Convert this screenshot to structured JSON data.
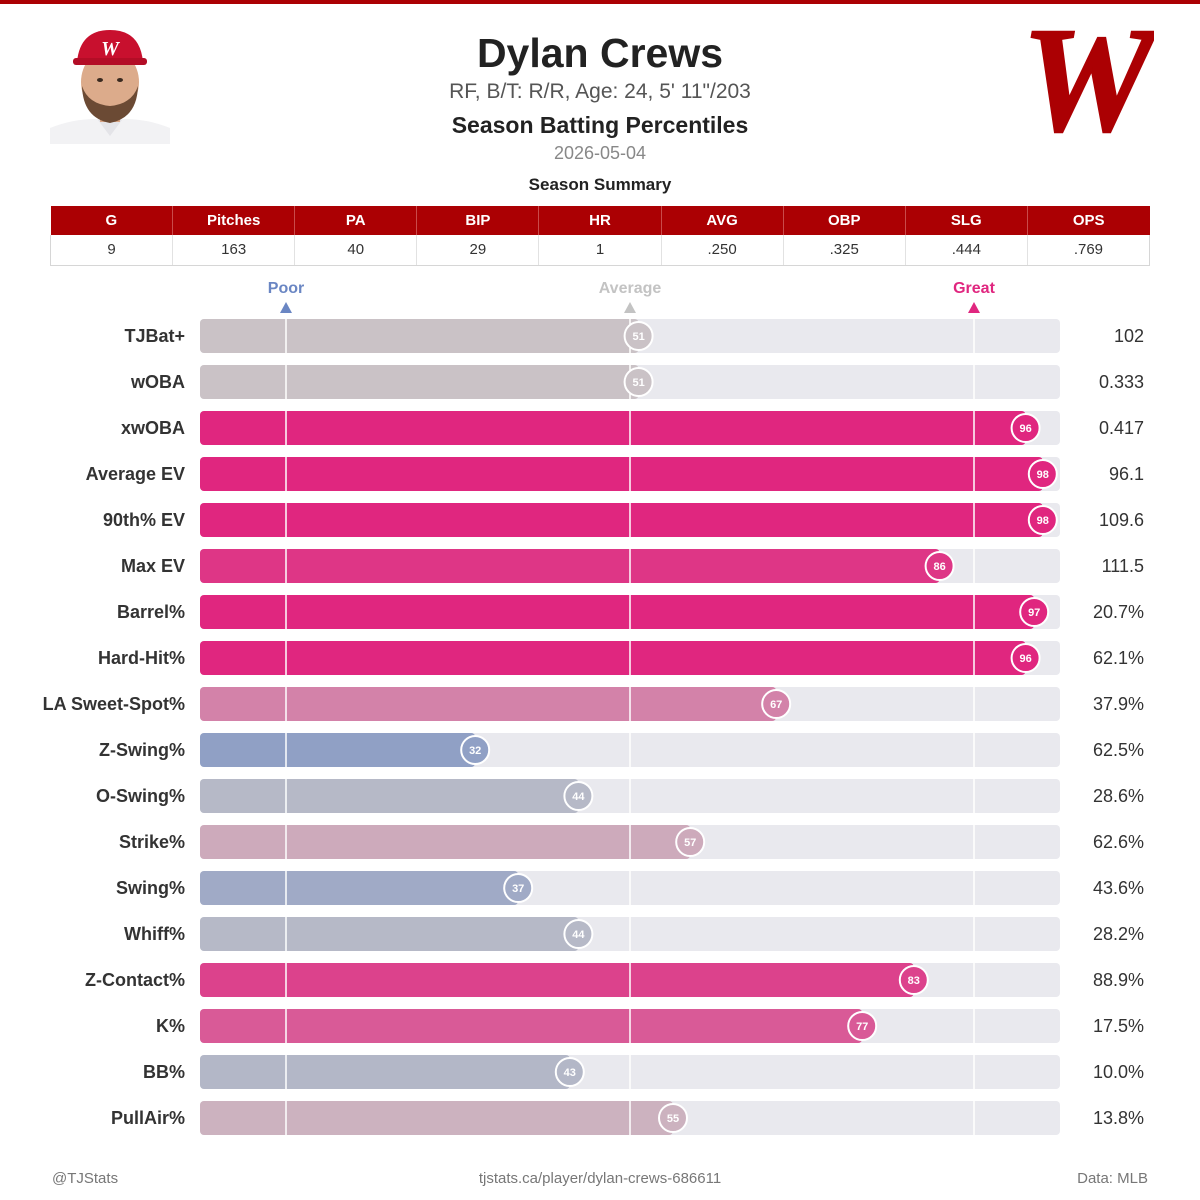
{
  "header": {
    "name": "Dylan Crews",
    "bio": "RF, B/T: R/R, Age: 24, 5' 11\"/203",
    "title": "Season Batting Percentiles",
    "date": "2026-05-04",
    "logo_letter": "W"
  },
  "summary": {
    "caption": "Season Summary",
    "columns": [
      "G",
      "Pitches",
      "PA",
      "BIP",
      "HR",
      "AVG",
      "OBP",
      "SLG",
      "OPS"
    ],
    "values": [
      "9",
      "163",
      "40",
      "29",
      "1",
      ".250",
      ".325",
      ".444",
      ".769"
    ]
  },
  "colors": {
    "brand_red": "#ab0003",
    "great": "#e0267f",
    "poor": "#6a86c3",
    "average": "#c9c6c8",
    "track": "#e9e9ee"
  },
  "chart_data": {
    "type": "bar",
    "orientation": "horizontal",
    "xlim": [
      0,
      100
    ],
    "markers": [
      {
        "label": "Poor",
        "value": 10
      },
      {
        "label": "Average",
        "value": 50
      },
      {
        "label": "Great",
        "value": 90
      }
    ],
    "categories": [
      "TJBat+",
      "wOBA",
      "xwOBA",
      "Average EV",
      "90th% EV",
      "Max EV",
      "Barrel%",
      "Hard-Hit%",
      "LA Sweet-Spot%",
      "Z-Swing%",
      "O-Swing%",
      "Strike%",
      "Swing%",
      "Whiff%",
      "Z-Contact%",
      "K%",
      "BB%",
      "PullAir%"
    ],
    "percentiles": [
      51,
      51,
      96,
      98,
      98,
      86,
      97,
      96,
      67,
      32,
      44,
      57,
      37,
      44,
      83,
      77,
      43,
      55
    ],
    "stat_values": [
      "102",
      "0.333",
      "0.417",
      "96.1",
      "109.6",
      "111.5",
      "20.7%",
      "62.1%",
      "37.9%",
      "62.5%",
      "28.6%",
      "62.6%",
      "43.6%",
      "28.2%",
      "88.9%",
      "17.5%",
      "10.0%",
      "13.8%"
    ]
  },
  "footer": {
    "left": "@TJStats",
    "center": "tjstats.ca/player/dylan-crews-686611",
    "right": "Data: MLB"
  }
}
